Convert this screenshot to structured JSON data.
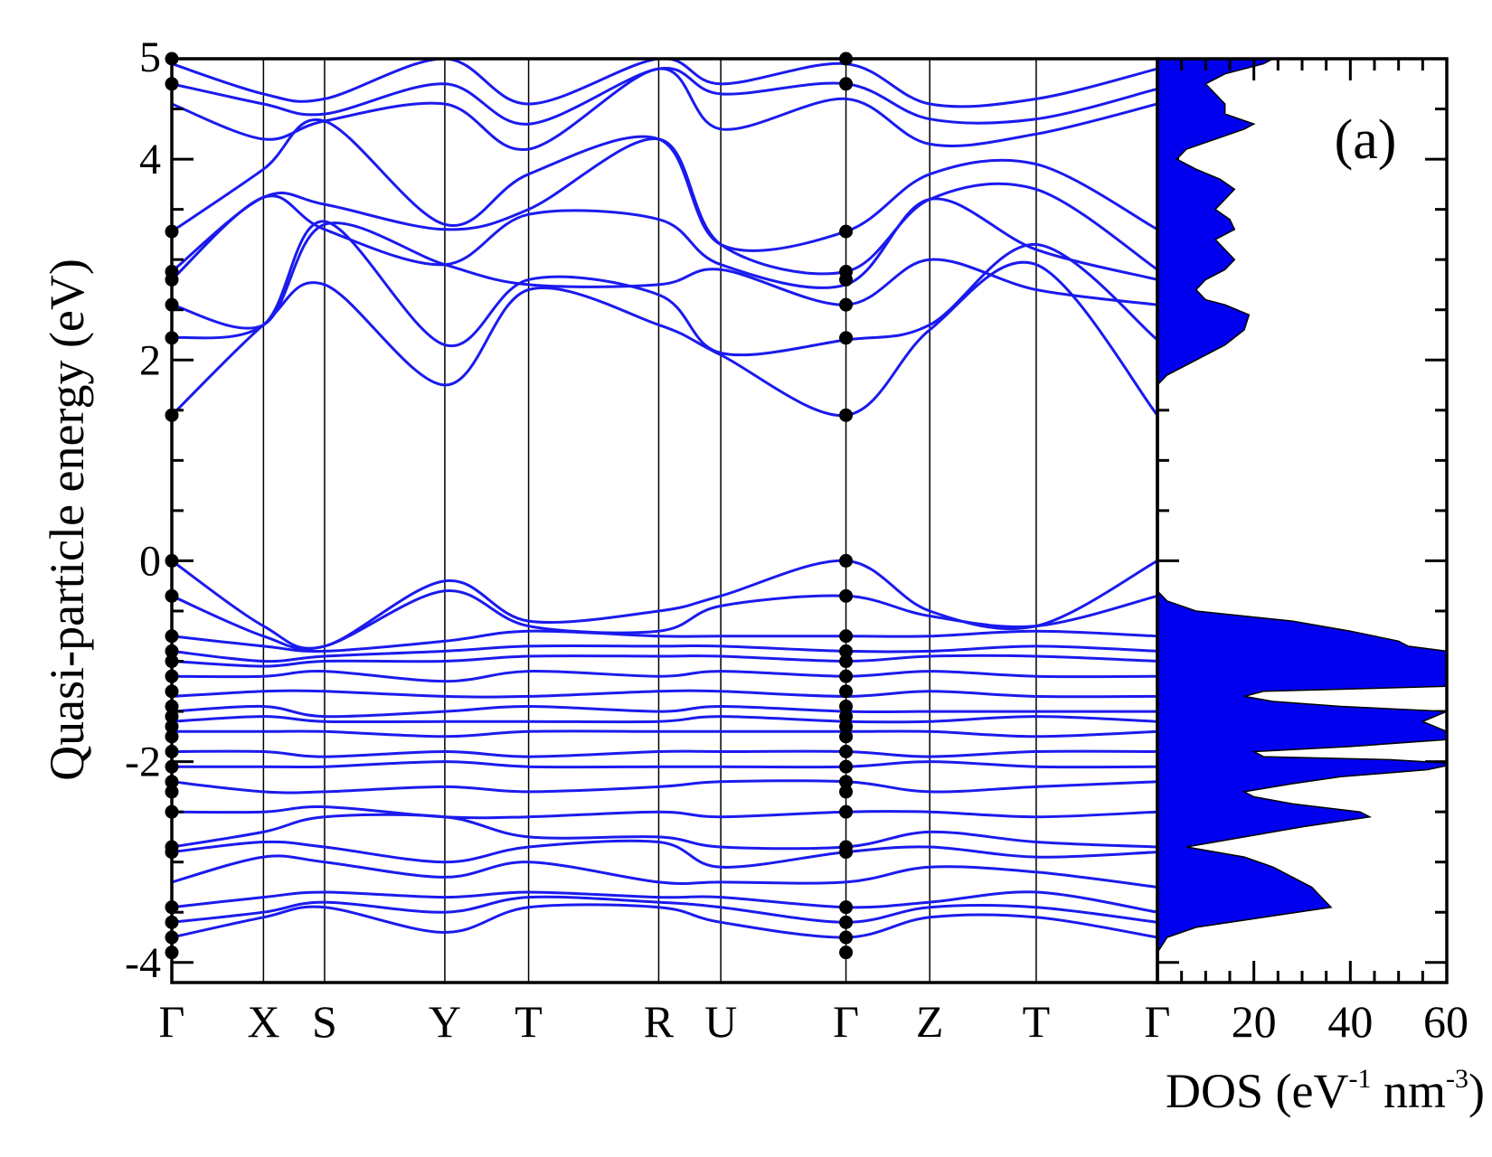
{
  "chart_data": [
    {
      "type": "line",
      "panel": "band-structure",
      "ylabel": "Quasi-particle energy (eV)",
      "ylim": [
        -4.2,
        5
      ],
      "yticks": [
        -4,
        -2,
        0,
        2,
        4
      ],
      "ytick_labels": [
        "-4",
        "-2",
        "0",
        "2",
        "4"
      ],
      "grid": false,
      "kpath": [
        {
          "label": "Γ",
          "pos": 0.0
        },
        {
          "label": "X",
          "pos": 0.093
        },
        {
          "label": "S",
          "pos": 0.155
        },
        {
          "label": "Y",
          "pos": 0.277
        },
        {
          "label": "T",
          "pos": 0.362
        },
        {
          "label": "R",
          "pos": 0.494
        },
        {
          "label": "U",
          "pos": 0.557
        },
        {
          "label": "Γ",
          "pos": 0.684
        },
        {
          "label": "Z",
          "pos": 0.769
        },
        {
          "label": "T",
          "pos": 0.877
        },
        {
          "label": "Γ",
          "pos": 1.0
        }
      ],
      "line_color": "#1a1aee",
      "marker_color": "#000000",
      "conduction_bands": [
        [
          1.45,
          2.35,
          2.75,
          1.75,
          2.7,
          2.35,
          2.05,
          1.45,
          2.3,
          2.95,
          1.45
        ],
        [
          2.22,
          2.35,
          3.38,
          2.15,
          2.8,
          2.65,
          2.07,
          2.2,
          2.35,
          3.15,
          2.2
        ],
        [
          2.55,
          2.35,
          3.35,
          2.95,
          2.75,
          2.75,
          2.9,
          2.55,
          3.0,
          2.7,
          2.55
        ],
        [
          2.8,
          3.62,
          3.3,
          2.95,
          3.45,
          3.4,
          2.95,
          2.75,
          3.6,
          3.1,
          2.8
        ],
        [
          2.88,
          3.62,
          3.55,
          3.3,
          3.5,
          4.2,
          3.15,
          2.88,
          3.6,
          3.7,
          2.9
        ],
        [
          3.28,
          3.9,
          4.38,
          3.35,
          3.85,
          4.2,
          3.15,
          3.28,
          3.85,
          3.95,
          3.3
        ],
        [
          4.55,
          4.2,
          4.38,
          4.55,
          4.1,
          4.9,
          4.3,
          4.6,
          4.15,
          4.25,
          4.55
        ],
        [
          4.75,
          4.55,
          4.45,
          4.75,
          4.35,
          4.9,
          4.65,
          4.75,
          4.4,
          4.4,
          4.7
        ],
        [
          4.95,
          4.65,
          4.6,
          5.0,
          4.55,
          5.0,
          4.75,
          4.95,
          4.55,
          4.6,
          4.9
        ]
      ],
      "valence_bands": [
        [
          0.0,
          -0.65,
          -0.85,
          -0.2,
          -0.6,
          -0.5,
          -0.35,
          0.0,
          -0.5,
          -0.65,
          0.0
        ],
        [
          -0.35,
          -0.75,
          -0.85,
          -0.3,
          -0.65,
          -0.7,
          -0.45,
          -0.35,
          -0.55,
          -0.65,
          -0.35
        ],
        [
          -0.75,
          -0.85,
          -0.9,
          -0.8,
          -0.7,
          -0.75,
          -0.75,
          -0.75,
          -0.75,
          -0.7,
          -0.75
        ],
        [
          -0.9,
          -1.0,
          -0.95,
          -0.9,
          -0.85,
          -0.85,
          -0.85,
          -0.9,
          -0.9,
          -0.85,
          -0.9
        ],
        [
          -1.0,
          -1.05,
          -1.0,
          -1.0,
          -0.95,
          -0.95,
          -0.95,
          -1.0,
          -0.95,
          -0.95,
          -1.0
        ],
        [
          -1.15,
          -1.15,
          -1.1,
          -1.2,
          -1.1,
          -1.15,
          -1.1,
          -1.15,
          -1.1,
          -1.15,
          -1.15
        ],
        [
          -1.35,
          -1.3,
          -1.3,
          -1.35,
          -1.35,
          -1.3,
          -1.3,
          -1.35,
          -1.3,
          -1.35,
          -1.35
        ],
        [
          -1.5,
          -1.45,
          -1.55,
          -1.5,
          -1.45,
          -1.5,
          -1.45,
          -1.5,
          -1.5,
          -1.5,
          -1.5
        ],
        [
          -1.6,
          -1.55,
          -1.6,
          -1.6,
          -1.6,
          -1.6,
          -1.55,
          -1.6,
          -1.6,
          -1.55,
          -1.6
        ],
        [
          -1.7,
          -1.7,
          -1.7,
          -1.75,
          -1.7,
          -1.7,
          -1.7,
          -1.7,
          -1.7,
          -1.75,
          -1.7
        ],
        [
          -1.9,
          -1.9,
          -1.95,
          -1.9,
          -1.95,
          -1.9,
          -1.9,
          -1.9,
          -1.95,
          -1.9,
          -1.9
        ],
        [
          -2.05,
          -2.05,
          -2.05,
          -2.0,
          -2.05,
          -2.05,
          -2.05,
          -2.05,
          -2.0,
          -2.05,
          -2.05
        ],
        [
          -2.2,
          -2.3,
          -2.3,
          -2.25,
          -2.3,
          -2.25,
          -2.2,
          -2.2,
          -2.3,
          -2.25,
          -2.2
        ],
        [
          -2.5,
          -2.5,
          -2.45,
          -2.55,
          -2.55,
          -2.5,
          -2.55,
          -2.5,
          -2.5,
          -2.55,
          -2.5
        ],
        [
          -2.85,
          -2.7,
          -2.55,
          -2.55,
          -2.75,
          -2.75,
          -2.85,
          -2.85,
          -2.7,
          -2.8,
          -2.85
        ],
        [
          -2.9,
          -2.8,
          -2.85,
          -3.0,
          -2.85,
          -2.8,
          -3.05,
          -2.9,
          -2.85,
          -2.95,
          -2.9
        ],
        [
          -3.2,
          -2.95,
          -3.0,
          -3.15,
          -3.0,
          -3.2,
          -3.2,
          -3.2,
          -3.05,
          -3.1,
          -3.25
        ],
        [
          -3.45,
          -3.35,
          -3.3,
          -3.35,
          -3.3,
          -3.35,
          -3.35,
          -3.45,
          -3.4,
          -3.3,
          -3.5
        ],
        [
          -3.6,
          -3.5,
          -3.4,
          -3.5,
          -3.35,
          -3.4,
          -3.45,
          -3.6,
          -3.45,
          -3.45,
          -3.6
        ],
        [
          -3.75,
          -3.55,
          -3.45,
          -3.7,
          -3.45,
          -3.45,
          -3.6,
          -3.75,
          -3.55,
          -3.55,
          -3.75
        ]
      ],
      "gamma_markers_energies": [
        5.0,
        4.75,
        3.28,
        2.88,
        2.8,
        2.55,
        2.22,
        1.45,
        0.0,
        -0.35,
        -0.75,
        -0.9,
        -1.0,
        -1.15,
        -1.3,
        -1.45,
        -1.55,
        -1.65,
        -1.75,
        -1.9,
        -2.05,
        -2.2,
        -2.3,
        -2.5,
        -2.85,
        -2.9,
        -3.45,
        -3.6,
        -3.75,
        -3.9
      ]
    },
    {
      "type": "area",
      "panel": "dos",
      "label": "(a)",
      "xlabel_main": "DOS (eV",
      "xlabel_sup1": "-1",
      "xlabel_mid": " nm",
      "xlabel_sup2": "-3",
      "xlabel_end": ")",
      "xlim": [
        0,
        60
      ],
      "xticks": [
        20,
        40,
        60
      ],
      "xtick_labels": [
        "20",
        "40",
        "60"
      ],
      "fill_color": "#0000ee",
      "energy": [
        -4.2,
        -3.9,
        -3.75,
        -3.65,
        -3.55,
        -3.45,
        -3.35,
        -3.25,
        -3.15,
        -3.05,
        -2.95,
        -2.85,
        -2.75,
        -2.65,
        -2.55,
        -2.5,
        -2.42,
        -2.35,
        -2.3,
        -2.22,
        -2.15,
        -2.08,
        -2.02,
        -1.98,
        -1.95,
        -1.9,
        -1.85,
        -1.78,
        -1.7,
        -1.6,
        -1.5,
        -1.45,
        -1.4,
        -1.35,
        -1.3,
        -1.25,
        -1.2,
        -1.1,
        -1.0,
        -0.9,
        -0.85,
        -0.8,
        -0.7,
        -0.6,
        -0.5,
        -0.4,
        -0.3,
        0.0,
        1.6,
        1.75,
        1.85,
        2.0,
        2.15,
        2.3,
        2.45,
        2.55,
        2.6,
        2.7,
        2.8,
        2.9,
        3.0,
        3.1,
        3.2,
        3.3,
        3.4,
        3.5,
        3.6,
        3.7,
        3.8,
        3.9,
        4.0,
        4.1,
        4.2,
        4.3,
        4.35,
        4.45,
        4.55,
        4.65,
        4.75,
        4.85,
        4.95,
        5.0
      ],
      "dos": [
        0,
        0,
        2,
        8,
        22,
        36,
        34,
        32,
        28,
        24,
        18,
        6,
        18,
        30,
        44,
        42,
        28,
        20,
        18,
        28,
        38,
        56,
        62,
        48,
        22,
        20,
        40,
        60,
        60,
        55,
        60,
        38,
        24,
        18,
        22,
        60,
        60,
        60,
        60,
        60,
        52,
        50,
        40,
        28,
        8,
        2,
        0,
        0,
        0,
        0,
        2,
        8,
        14,
        18,
        19,
        14,
        10,
        8,
        10,
        14,
        16,
        14,
        12,
        16,
        15,
        12,
        14,
        16,
        13,
        8,
        4,
        6,
        12,
        18,
        20,
        14,
        14,
        12,
        10,
        14,
        22,
        24
      ]
    }
  ]
}
